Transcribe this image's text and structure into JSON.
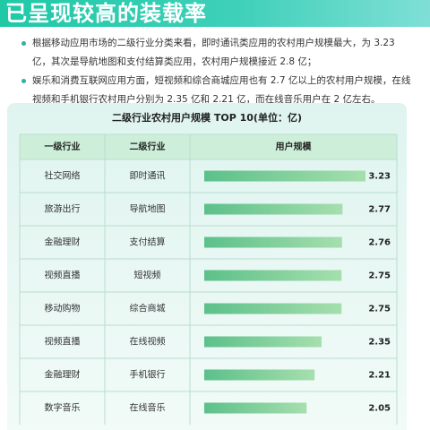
{
  "header": {
    "title": "已呈现较高的装载率"
  },
  "bullets": [
    "根据移动应用市场的二级行业分类来看，即时通讯类应用的农村用户规模最大，为 3.23 亿，其次是导航地图和支付结算类应用，农村用户规模接近 2.8 亿；",
    "娱乐和消费互联网应用方面，短视频和综合商城应用也有 2.7 亿以上的农村用户规模，在线视频和手机银行农村用户分别为 2.35 亿和 2.21 亿，而在线音乐用户在 2 亿左右。"
  ],
  "colors": {
    "accent": "#2ab3a6",
    "bar_start": "#5cc08a",
    "bar_end": "#a6dfae",
    "header_bg": "#cdeed8"
  },
  "chart_data": {
    "type": "table",
    "title": "二级行业农村用户规模 TOP 10(单位：亿)",
    "columns": [
      "一级行业",
      "二级行业",
      "用户规模"
    ],
    "rows": [
      {
        "level1": "社交网络",
        "level2": "即时通讯",
        "value": 3.23
      },
      {
        "level1": "旅游出行",
        "level2": "导航地图",
        "value": 2.77
      },
      {
        "level1": "金融理财",
        "level2": "支付结算",
        "value": 2.76
      },
      {
        "level1": "视频直播",
        "level2": "短视频",
        "value": 2.75
      },
      {
        "level1": "移动购物",
        "level2": "综合商城",
        "value": 2.75
      },
      {
        "level1": "视频直播",
        "level2": "在线视频",
        "value": 2.35
      },
      {
        "level1": "金融理财",
        "level2": "手机银行",
        "value": 2.21
      },
      {
        "level1": "数字音乐",
        "level2": "在线音乐",
        "value": 2.05
      }
    ],
    "value_labels": [
      "3.23",
      "2.77",
      "2.76",
      "2.75",
      "2.75",
      "2.35",
      "2.21",
      "2.05"
    ],
    "xlim": [
      0,
      3.23
    ]
  }
}
